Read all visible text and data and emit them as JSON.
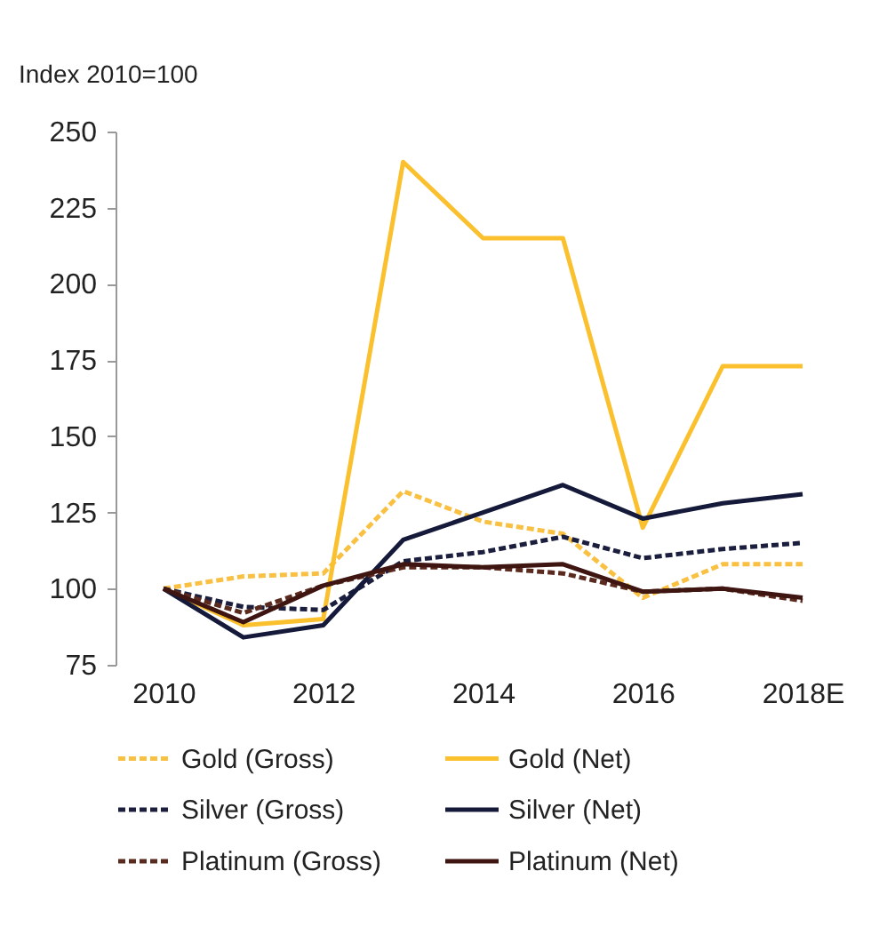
{
  "chart_data": {
    "type": "line",
    "ylabel": "Index 2010=100",
    "categories": [
      "2010",
      null,
      "2012",
      null,
      "2014",
      null,
      "2016",
      null,
      "2018E"
    ],
    "ylim": [
      75,
      250
    ],
    "yticks": [
      75,
      100,
      125,
      150,
      175,
      200,
      225,
      250
    ],
    "grid": false,
    "legend": "bottom",
    "marker": "none",
    "series": [
      {
        "name": "Gold (Gross)",
        "color": "#f9c041",
        "line_style": "dashed",
        "values": [
          100,
          104,
          105,
          132,
          122,
          118,
          97,
          108,
          108
        ]
      },
      {
        "name": "Gold (Net)",
        "color": "#fbc02d",
        "line_style": "solid",
        "values": [
          100,
          88,
          90,
          240,
          215,
          215,
          120,
          173,
          173
        ]
      },
      {
        "name": "Silver (Gross)",
        "color": "#1b1e3d",
        "line_style": "dashed",
        "values": [
          100,
          94,
          93,
          109,
          112,
          117,
          110,
          113,
          115
        ]
      },
      {
        "name": "Silver (Net)",
        "color": "#161a3a",
        "line_style": "solid",
        "values": [
          100,
          84,
          88,
          116,
          125,
          134,
          123,
          128,
          131
        ]
      },
      {
        "name": "Platinum (Gross)",
        "color": "#5a2a1f",
        "line_style": "dashed",
        "values": [
          100,
          92,
          101,
          107,
          107,
          105,
          99,
          100,
          96
        ]
      },
      {
        "name": "Platinum (Net)",
        "color": "#3e1510",
        "line_style": "solid",
        "values": [
          100,
          89,
          101,
          108,
          107,
          108,
          99,
          100,
          97
        ]
      }
    ]
  }
}
